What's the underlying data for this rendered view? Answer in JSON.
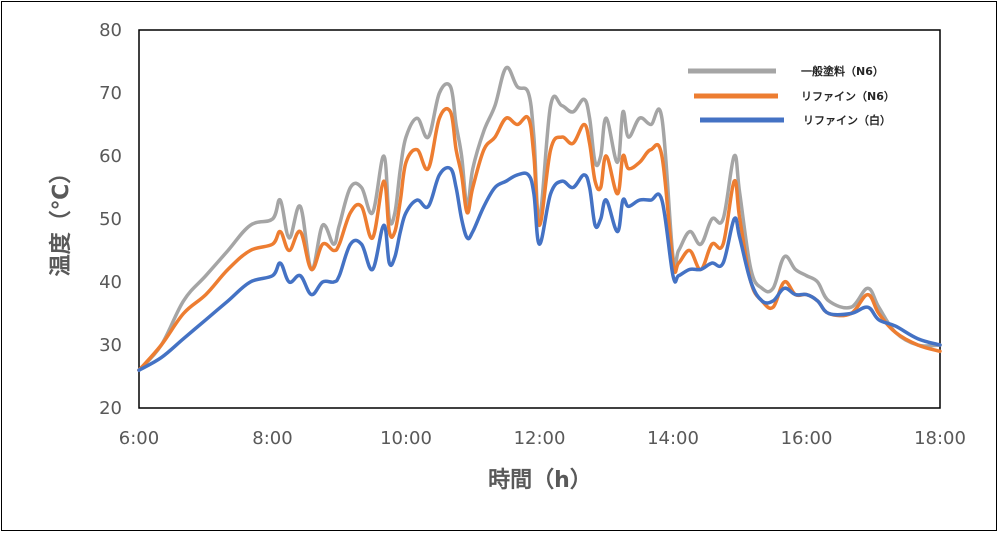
{
  "chart_data": {
    "type": "line",
    "xlabel": "時間（h）",
    "ylabel": "温度（℃）",
    "ylim": [
      20,
      80
    ],
    "yticks": [
      20,
      30,
      40,
      50,
      60,
      70,
      80
    ],
    "x_range": [
      "6:00",
      "18:00"
    ],
    "xticks": [
      "6:00",
      "8:00",
      "10:00",
      "12:00",
      "14:00",
      "16:00",
      "18:00"
    ],
    "grid": false,
    "legend_position": "top-right",
    "series": [
      {
        "name": "一般塗料（N6）",
        "color": "#a5a5a5",
        "x": [
          "6:00",
          "6:20",
          "6:40",
          "7:00",
          "7:20",
          "7:40",
          "8:00",
          "8:07",
          "8:15",
          "8:25",
          "8:35",
          "8:45",
          "8:55",
          "9:00",
          "9:10",
          "9:20",
          "9:30",
          "9:40",
          "9:45",
          "9:50",
          "9:55",
          "10:00",
          "10:10",
          "10:20",
          "10:30",
          "10:40",
          "10:45",
          "10:50",
          "10:55",
          "11:00",
          "11:10",
          "11:20",
          "11:30",
          "11:40",
          "11:50",
          "11:55",
          "12:00",
          "12:10",
          "12:20",
          "12:30",
          "12:40",
          "12:45",
          "12:50",
          "12:55",
          "13:00",
          "13:10",
          "13:15",
          "13:20",
          "13:30",
          "13:40",
          "13:50",
          "14:00",
          "14:05",
          "14:15",
          "14:25",
          "14:35",
          "14:45",
          "14:55",
          "15:00",
          "15:10",
          "15:20",
          "15:30",
          "15:40",
          "15:50",
          "16:00",
          "16:10",
          "16:20",
          "16:40",
          "16:55",
          "17:05",
          "17:20",
          "17:40",
          "18:00"
        ],
        "values": [
          26,
          30,
          37,
          41,
          45,
          49,
          50,
          53,
          47,
          52,
          42,
          49,
          46,
          49,
          55,
          55,
          51,
          60,
          50,
          51,
          58,
          63,
          66,
          63,
          70,
          71,
          65,
          60,
          52,
          58,
          64,
          68,
          74,
          71,
          70,
          63,
          50,
          68,
          68,
          67,
          69,
          66,
          59,
          60,
          66,
          59,
          67,
          63,
          66,
          65,
          66,
          44,
          45,
          48,
          46,
          50,
          50,
          60,
          54,
          42,
          39,
          39,
          44,
          42,
          41,
          40,
          37,
          36,
          39,
          36,
          32,
          30,
          30
        ]
      },
      {
        "name": "リファイン（N6）",
        "color": "#ed7d31",
        "x": [
          "6:00",
          "6:20",
          "6:40",
          "7:00",
          "7:20",
          "7:40",
          "8:00",
          "8:07",
          "8:15",
          "8:25",
          "8:35",
          "8:45",
          "8:55",
          "9:00",
          "9:10",
          "9:20",
          "9:30",
          "9:40",
          "9:45",
          "9:50",
          "9:55",
          "10:00",
          "10:10",
          "10:20",
          "10:30",
          "10:40",
          "10:45",
          "10:50",
          "10:55",
          "11:00",
          "11:10",
          "11:20",
          "11:30",
          "11:40",
          "11:50",
          "11:55",
          "12:00",
          "12:10",
          "12:20",
          "12:30",
          "12:40",
          "12:45",
          "12:50",
          "12:55",
          "13:00",
          "13:10",
          "13:15",
          "13:20",
          "13:30",
          "13:40",
          "13:50",
          "14:00",
          "14:05",
          "14:15",
          "14:25",
          "14:35",
          "14:45",
          "14:55",
          "15:00",
          "15:10",
          "15:20",
          "15:30",
          "15:40",
          "15:50",
          "16:00",
          "16:10",
          "16:20",
          "16:40",
          "16:55",
          "17:05",
          "17:20",
          "17:40",
          "18:00"
        ],
        "values": [
          26,
          30,
          35,
          38,
          42,
          45,
          46,
          48,
          45,
          48,
          42,
          46,
          45,
          46,
          51,
          52,
          47,
          56,
          48,
          48,
          53,
          59,
          61,
          58,
          66,
          67,
          61,
          57,
          51,
          55,
          61,
          63,
          66,
          65,
          66,
          60,
          49,
          61,
          63,
          62,
          65,
          62,
          56,
          55,
          60,
          54,
          60,
          58,
          59,
          61,
          60,
          43,
          43,
          45,
          42,
          46,
          46,
          56,
          50,
          40,
          37,
          36,
          40,
          38,
          38,
          37,
          35,
          35,
          38,
          35,
          32,
          30,
          29
        ]
      },
      {
        "name": "リファイン（白）",
        "color": "#4472c4",
        "x": [
          "6:00",
          "6:20",
          "6:40",
          "7:00",
          "7:20",
          "7:40",
          "8:00",
          "8:07",
          "8:15",
          "8:25",
          "8:35",
          "8:45",
          "8:55",
          "9:00",
          "9:10",
          "9:20",
          "9:30",
          "9:40",
          "9:45",
          "9:50",
          "9:55",
          "10:00",
          "10:10",
          "10:20",
          "10:30",
          "10:40",
          "10:45",
          "10:50",
          "10:55",
          "11:00",
          "11:10",
          "11:20",
          "11:30",
          "11:40",
          "11:50",
          "11:55",
          "12:00",
          "12:10",
          "12:20",
          "12:30",
          "12:40",
          "12:45",
          "12:50",
          "12:55",
          "13:00",
          "13:10",
          "13:15",
          "13:20",
          "13:30",
          "13:40",
          "13:50",
          "14:00",
          "14:05",
          "14:15",
          "14:25",
          "14:35",
          "14:45",
          "14:55",
          "15:00",
          "15:10",
          "15:20",
          "15:30",
          "15:40",
          "15:50",
          "16:00",
          "16:10",
          "16:20",
          "16:40",
          "16:55",
          "17:05",
          "17:20",
          "17:40",
          "18:00"
        ],
        "values": [
          26,
          28,
          31,
          34,
          37,
          40,
          41,
          43,
          40,
          41,
          38,
          40,
          40,
          41,
          46,
          46,
          42,
          49,
          43,
          44,
          48,
          51,
          53,
          52,
          57,
          58,
          55,
          50,
          47,
          48,
          52,
          55,
          56,
          57,
          57,
          54,
          46,
          54,
          56,
          55,
          57,
          55,
          49,
          50,
          53,
          48,
          53,
          52,
          53,
          53,
          53,
          41,
          41,
          42,
          42,
          43,
          43,
          50,
          47,
          40,
          37,
          37,
          39,
          38,
          38,
          37,
          35,
          35,
          36,
          34,
          33,
          31,
          30
        ]
      }
    ]
  }
}
